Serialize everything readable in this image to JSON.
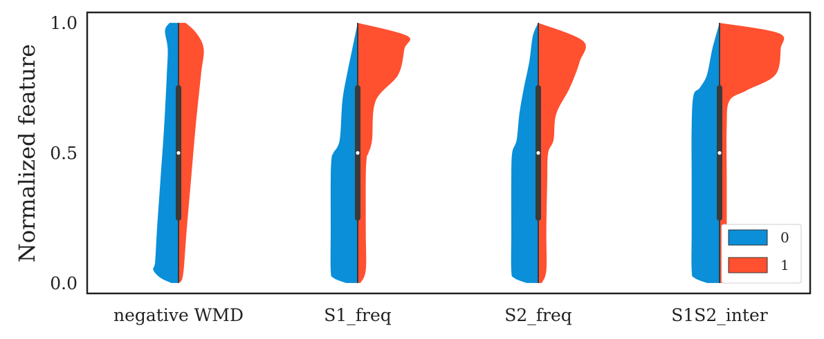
{
  "chart_data": {
    "type": "violin",
    "split": true,
    "title": "",
    "ylabel": "Normalized feature",
    "xlabel": "",
    "ylim": [
      -0.04,
      1.04
    ],
    "yticks": [
      {
        "value": 0.0,
        "label": "0.0"
      },
      {
        "value": 0.5,
        "label": "0.5"
      },
      {
        "value": 1.0,
        "label": "1.0"
      }
    ],
    "categories": [
      "negative WMD",
      "S1_freq",
      "S2_freq",
      "S1S2_inter"
    ],
    "legend": {
      "position": "lower-right",
      "entries": [
        {
          "label": "0",
          "color": "#0a8fd8"
        },
        {
          "label": "1",
          "color": "#ff5030"
        }
      ]
    },
    "quartiles": {
      "q1": 0.25,
      "median": 0.5,
      "q3": 0.75
    },
    "violins": [
      {
        "category": "negative WMD",
        "left_profile": [
          [
            0.0,
            0.08
          ],
          [
            0.02,
            0.2
          ],
          [
            0.05,
            0.28
          ],
          [
            0.08,
            0.26
          ],
          [
            0.2,
            0.24
          ],
          [
            0.4,
            0.2
          ],
          [
            0.6,
            0.16
          ],
          [
            0.8,
            0.13
          ],
          [
            0.9,
            0.12
          ],
          [
            0.97,
            0.15
          ],
          [
            1.0,
            0.1
          ]
        ],
        "right_profile": [
          [
            0.0,
            0.0
          ],
          [
            0.03,
            0.05
          ],
          [
            0.2,
            0.09
          ],
          [
            0.4,
            0.14
          ],
          [
            0.6,
            0.19
          ],
          [
            0.8,
            0.25
          ],
          [
            0.9,
            0.28
          ],
          [
            0.96,
            0.2
          ],
          [
            1.0,
            0.08
          ]
        ]
      },
      {
        "category": "S1_freq",
        "left_profile": [
          [
            0.0,
            0.13
          ],
          [
            0.02,
            0.27
          ],
          [
            0.05,
            0.3
          ],
          [
            0.2,
            0.3
          ],
          [
            0.4,
            0.3
          ],
          [
            0.48,
            0.29
          ],
          [
            0.5,
            0.27
          ],
          [
            0.55,
            0.2
          ],
          [
            0.7,
            0.17
          ],
          [
            0.8,
            0.12
          ],
          [
            0.9,
            0.06
          ],
          [
            1.0,
            0.0
          ]
        ],
        "right_profile": [
          [
            0.0,
            0.03
          ],
          [
            0.05,
            0.09
          ],
          [
            0.2,
            0.09
          ],
          [
            0.4,
            0.09
          ],
          [
            0.48,
            0.1
          ],
          [
            0.5,
            0.12
          ],
          [
            0.55,
            0.16
          ],
          [
            0.7,
            0.2
          ],
          [
            0.8,
            0.45
          ],
          [
            0.9,
            0.52
          ],
          [
            0.95,
            0.55
          ],
          [
            1.0,
            0.0
          ]
        ]
      },
      {
        "category": "S2_freq",
        "left_profile": [
          [
            0.0,
            0.13
          ],
          [
            0.02,
            0.27
          ],
          [
            0.05,
            0.3
          ],
          [
            0.2,
            0.3
          ],
          [
            0.4,
            0.3
          ],
          [
            0.5,
            0.29
          ],
          [
            0.55,
            0.24
          ],
          [
            0.65,
            0.21
          ],
          [
            0.75,
            0.16
          ],
          [
            0.85,
            0.1
          ],
          [
            0.95,
            0.06
          ],
          [
            1.0,
            0.0
          ]
        ],
        "right_profile": [
          [
            0.0,
            0.04
          ],
          [
            0.05,
            0.09
          ],
          [
            0.2,
            0.09
          ],
          [
            0.4,
            0.1
          ],
          [
            0.5,
            0.11
          ],
          [
            0.55,
            0.17
          ],
          [
            0.65,
            0.2
          ],
          [
            0.75,
            0.35
          ],
          [
            0.85,
            0.46
          ],
          [
            0.93,
            0.5
          ],
          [
            1.0,
            0.0
          ]
        ]
      },
      {
        "category": "S1S2_inter",
        "left_profile": [
          [
            0.0,
            0.14
          ],
          [
            0.02,
            0.28
          ],
          [
            0.05,
            0.31
          ],
          [
            0.2,
            0.31
          ],
          [
            0.4,
            0.31
          ],
          [
            0.6,
            0.31
          ],
          [
            0.72,
            0.29
          ],
          [
            0.75,
            0.22
          ],
          [
            0.8,
            0.14
          ],
          [
            0.9,
            0.08
          ],
          [
            1.0,
            0.0
          ]
        ],
        "right_profile": [
          [
            0.0,
            0.06
          ],
          [
            0.03,
            0.08
          ],
          [
            0.2,
            0.08
          ],
          [
            0.4,
            0.08
          ],
          [
            0.6,
            0.08
          ],
          [
            0.7,
            0.11
          ],
          [
            0.74,
            0.3
          ],
          [
            0.8,
            0.62
          ],
          [
            0.9,
            0.68
          ],
          [
            0.96,
            0.66
          ],
          [
            1.0,
            0.0
          ]
        ]
      }
    ]
  }
}
